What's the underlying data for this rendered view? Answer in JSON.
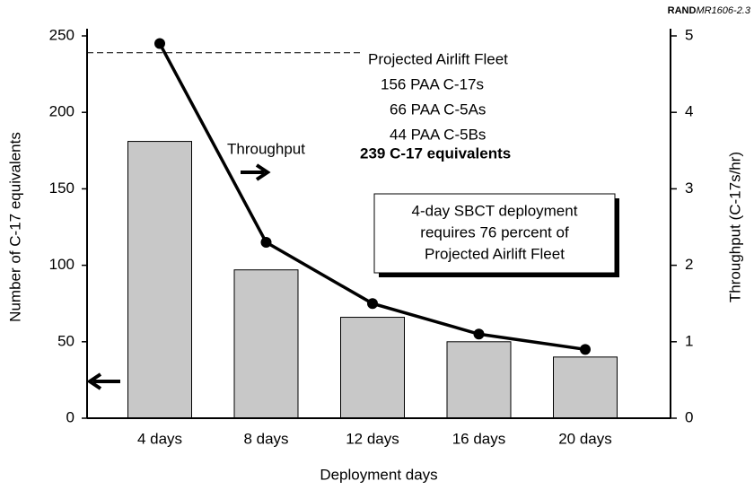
{
  "chart_data": {
    "type": "bar",
    "source": {
      "org": "RAND",
      "id": "MR1606-2.3"
    },
    "xlabel": "Deployment days",
    "ylabel": "Number of C-17 equivalents",
    "y2label": "Throughput (C-17s/hr)",
    "categories": [
      "4 days",
      "8 days",
      "12 days",
      "16 days",
      "20 days"
    ],
    "series": [
      {
        "name": "C-17 equivalents",
        "type": "bar",
        "color": "#c8c8c8",
        "values": [
          181,
          97,
          66,
          50,
          40
        ]
      },
      {
        "name": "Throughput",
        "type": "line",
        "axis": "y2",
        "color": "#000000",
        "values": [
          4.9,
          2.3,
          1.5,
          1.1,
          0.9
        ]
      }
    ],
    "ylim": [
      0,
      250
    ],
    "yticks": [
      0,
      50,
      100,
      150,
      200,
      250
    ],
    "y2lim": [
      0,
      5
    ],
    "y2ticks": [
      0,
      1,
      2,
      3,
      4,
      5
    ],
    "fleet": {
      "title": "Projected Airlift Fleet",
      "lines": [
        "156 PAA C-17s",
        "66 PAA C-5As",
        "44 PAA C-5Bs"
      ],
      "total": {
        "value": 239,
        "label": "239 C-17 equivalents"
      }
    },
    "throughput_label": "Throughput",
    "note": [
      "4-day SBCT deployment",
      "requires 76 percent of",
      "Projected Airlift Fleet"
    ]
  }
}
